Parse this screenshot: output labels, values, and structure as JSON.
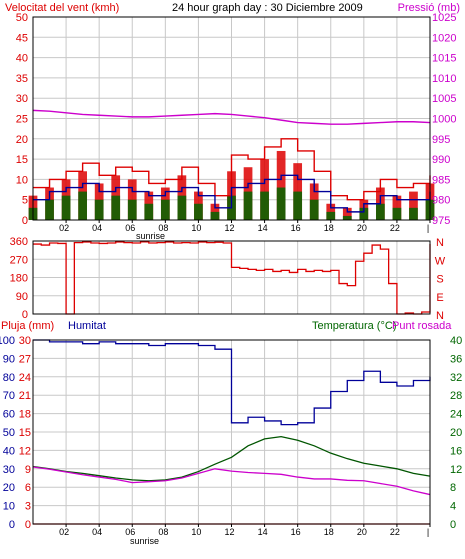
{
  "colors": {
    "red": "#dd0000",
    "blue": "#000099",
    "green": "#006600",
    "magenta": "#cc00cc",
    "dark_green": "#005500",
    "grid": "#c8c8c8",
    "frame": "#000000"
  },
  "chart_data": [
    {
      "type": "line",
      "panel": "wind_pressure",
      "title": "24 hour graph day : 30 Diciembre 2009",
      "left_axis_label": "Velocitat del vent (kmh)",
      "right_axis_label": "Pressió (mb)",
      "left_ticks": [
        "0",
        "5",
        "10",
        "15",
        "20",
        "25",
        "30",
        "35",
        "40",
        "45",
        "50"
      ],
      "right_ticks": [
        "975",
        "980",
        "985",
        "990",
        "995",
        "1000",
        "1005",
        "1010",
        "1015",
        "1020",
        "1025"
      ],
      "ylim_left": [
        0,
        50
      ],
      "ylim_right": [
        975,
        1025
      ],
      "x_ticks": [
        "02",
        "04",
        "06",
        "08",
        "10",
        "12",
        "14",
        "16",
        "18",
        "20",
        "22",
        "|"
      ],
      "x_annotation": "sunrise",
      "grid": true,
      "x": [
        0,
        1,
        2,
        3,
        4,
        5,
        6,
        7,
        8,
        9,
        10,
        11,
        12,
        13,
        14,
        15,
        16,
        17,
        18,
        19,
        20,
        21,
        22,
        23,
        24
      ],
      "series": [
        {
          "key": "gust",
          "color": "red",
          "style": "step-line",
          "values": [
            8,
            10,
            12,
            14,
            11,
            13,
            12,
            9,
            10,
            13,
            9,
            6,
            16,
            15,
            18,
            20,
            17,
            12,
            6,
            5,
            7,
            10,
            8,
            9,
            11
          ]
        },
        {
          "key": "gust_fill",
          "color": "red",
          "style": "bars",
          "values": [
            6,
            8,
            10,
            12,
            9,
            11,
            10,
            7,
            8,
            11,
            7,
            4,
            12,
            13,
            15,
            17,
            14,
            9,
            4,
            3,
            5,
            8,
            6,
            7,
            9
          ]
        },
        {
          "key": "mean",
          "color": "blue",
          "style": "step-line",
          "values": [
            5,
            7,
            8,
            9,
            7,
            8,
            7,
            6,
            7,
            8,
            6,
            3,
            8,
            9,
            10,
            11,
            10,
            7,
            3,
            2,
            4,
            6,
            5,
            5,
            7
          ]
        },
        {
          "key": "mean_fill",
          "color": "green",
          "style": "bars",
          "values": [
            3,
            5,
            6,
            7,
            5,
            6,
            5,
            4,
            5,
            6,
            4,
            2,
            6,
            7,
            7,
            8,
            7,
            5,
            2,
            1,
            3,
            4,
            3,
            3,
            5
          ]
        },
        {
          "key": "pressure",
          "color": "magenta",
          "axis": "right",
          "values": [
            1002.0,
            1001.8,
            1001.4,
            1001.0,
            1000.8,
            1000.6,
            1000.4,
            1000.4,
            1000.6,
            1000.8,
            1001.0,
            1001.2,
            1001.0,
            1000.6,
            1000.2,
            999.6,
            999.0,
            998.8,
            998.6,
            998.6,
            998.8,
            999.0,
            999.2,
            999.2,
            999.0
          ]
        }
      ]
    },
    {
      "type": "line",
      "panel": "wind_direction",
      "left_ticks": [
        "0",
        "90",
        "180",
        "270",
        "360"
      ],
      "right_labels": [
        "N",
        "W",
        "S",
        "E",
        "N"
      ],
      "ylim": [
        0,
        360
      ],
      "grid": true,
      "x": [
        0,
        0.5,
        1,
        1.5,
        2,
        2.5,
        3,
        3.5,
        4,
        4.5,
        5,
        5.5,
        6,
        6.5,
        7,
        7.5,
        8,
        8.5,
        9,
        9.5,
        10,
        10.5,
        11,
        11.5,
        12,
        12.5,
        13,
        13.5,
        14,
        14.5,
        15,
        15.5,
        16,
        16.5,
        17,
        17.5,
        18,
        18.5,
        19,
        19.5,
        20,
        20.5,
        21,
        21.5,
        22,
        22.5,
        23,
        23.5,
        24
      ],
      "series": [
        {
          "key": "direction",
          "color": "red",
          "values": [
            345,
            340,
            350,
            348,
            0,
            352,
            355,
            350,
            348,
            350,
            355,
            352,
            350,
            356,
            350,
            352,
            355,
            350,
            352,
            350,
            355,
            352,
            354,
            350,
            230,
            225,
            220,
            215,
            220,
            210,
            215,
            205,
            220,
            210,
            215,
            210,
            215,
            150,
            140,
            260,
            300,
            340,
            320,
            150,
            0,
            5,
            0,
            10,
            345
          ]
        }
      ]
    },
    {
      "type": "line",
      "panel": "rain_hum_temp",
      "left_label_rain": "Pluja (mm)",
      "left_label_hum": "Humitat",
      "right_label_temp": "Temperatura (°C)",
      "right_label_dew": "Punt rosada",
      "rain_ticks": [
        "0",
        "3",
        "6",
        "9",
        "12",
        "15",
        "18",
        "21",
        "24",
        "27",
        "30"
      ],
      "hum_ticks": [
        "0",
        "10",
        "20",
        "30",
        "40",
        "50",
        "60",
        "70",
        "80",
        "90",
        "100"
      ],
      "temp_ticks": [
        "0",
        "4",
        "8",
        "12",
        "16",
        "20",
        "24",
        "28",
        "32",
        "36",
        "40"
      ],
      "x_ticks": [
        "02",
        "04",
        "06",
        "08",
        "10",
        "12",
        "14",
        "16",
        "18",
        "20",
        "22",
        "|"
      ],
      "x_annotation": "sunrise",
      "grid": true,
      "x": [
        0,
        1,
        2,
        3,
        4,
        5,
        6,
        7,
        8,
        9,
        10,
        11,
        12,
        13,
        14,
        15,
        16,
        17,
        18,
        19,
        20,
        21,
        22,
        23,
        24
      ],
      "series": [
        {
          "key": "rain",
          "color": "red",
          "axis": "rain",
          "values": [
            0,
            0,
            0,
            0,
            0,
            0,
            0,
            0,
            0,
            0,
            0,
            0,
            0,
            0,
            0,
            0,
            0,
            0,
            0,
            0,
            0,
            0,
            0,
            0,
            0
          ]
        },
        {
          "key": "humidity",
          "color": "blue",
          "axis": "hum",
          "values": [
            100,
            99,
            99,
            98,
            99,
            98,
            98,
            97,
            98,
            98,
            97,
            95,
            55,
            58,
            56,
            54,
            55,
            63,
            72,
            78,
            83,
            77,
            75,
            78,
            80
          ]
        },
        {
          "key": "temperature",
          "color": "dark_green",
          "axis": "temp",
          "values": [
            12.5,
            12.0,
            11.4,
            11.0,
            10.5,
            10.0,
            9.6,
            9.4,
            9.6,
            10.2,
            11.4,
            13.0,
            14.5,
            17.0,
            18.5,
            19.0,
            18.2,
            17.0,
            15.4,
            14.2,
            13.2,
            12.6,
            12.0,
            11.0,
            10.4
          ]
        },
        {
          "key": "dew_point",
          "color": "magenta",
          "axis": "temp",
          "values": [
            12.4,
            11.9,
            11.3,
            10.7,
            10.2,
            9.7,
            9.0,
            9.2,
            9.4,
            10.0,
            11.0,
            12.0,
            11.5,
            11.2,
            11.0,
            10.8,
            10.2,
            9.8,
            9.8,
            9.5,
            9.4,
            8.8,
            8.2,
            7.2,
            6.4
          ]
        }
      ]
    }
  ]
}
